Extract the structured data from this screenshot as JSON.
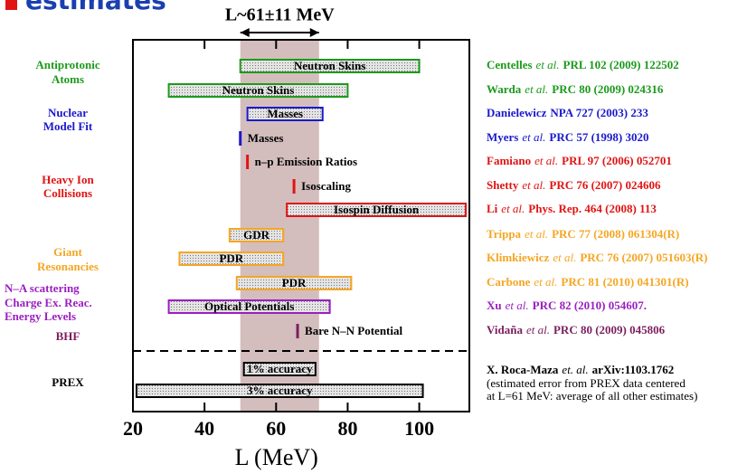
{
  "header": {
    "title": "estimates"
  },
  "chart_data": {
    "type": "range",
    "annotation": "L~61±11 MeV",
    "x_label": "L (MeV)",
    "xlim": [
      20,
      114
    ],
    "xticks": [
      20,
      40,
      60,
      80,
      100
    ],
    "band": [
      50,
      72
    ],
    "band_color": "#c9acac",
    "groups": [
      {
        "lines": [
          "Antiprotonic",
          "Atoms"
        ],
        "color": "#1c9a1c"
      },
      {
        "lines": [
          "Nuclear",
          "Model Fit"
        ],
        "color": "#1a1acc"
      },
      {
        "lines": [
          "Heavy Ion",
          "Collisions"
        ],
        "color": "#e01414"
      },
      {
        "lines": [
          "Giant",
          "Resonancies"
        ],
        "color": "#f5a623"
      },
      {
        "lines": [
          "N–A scattering",
          "Charge Ex. Reac.",
          "Energy Levels"
        ],
        "color": "#9b1fc0"
      },
      {
        "lines": [
          "BHF"
        ],
        "color": "#7a1f5e"
      },
      {
        "lines": [
          "PREX"
        ],
        "color": "#000000"
      }
    ],
    "items": [
      {
        "label": "Neutron Skins",
        "range": [
          50,
          100
        ],
        "color": "#1c9a1c",
        "reference": {
          "author": "Centelles",
          "etal": "et al.",
          "cite": "PRL 102 (2009) 122502"
        }
      },
      {
        "label": "Neutron Skins",
        "range": [
          30,
          80
        ],
        "color": "#1c9a1c",
        "reference": {
          "author": "Warda",
          "etal": "et al.",
          "cite": "PRC 80 (2009) 024316"
        }
      },
      {
        "label": "Masses",
        "range": [
          52,
          73
        ],
        "color": "#1a1acc",
        "reference": {
          "author": "Danielewicz",
          "cite": "NPA 727 (2003) 233"
        }
      },
      {
        "label": "Masses",
        "value": 50,
        "color": "#1a1acc",
        "reference": {
          "author": "Myers",
          "etal": "et al.",
          "cite": "PRC 57 (1998) 3020"
        }
      },
      {
        "label": "n–p Emission Ratios",
        "value": 52,
        "color": "#e01414",
        "reference": {
          "author": "Famiano",
          "etal": "et al.",
          "cite": "PRL 97 (2006) 052701"
        }
      },
      {
        "label": "Isoscaling",
        "value": 65,
        "color": "#e01414",
        "reference": {
          "author": "Shetty",
          "etal": "et al.",
          "cite": "PRC 76 (2007) 024606"
        }
      },
      {
        "label": "Isospin Diffusion",
        "range": [
          63,
          113
        ],
        "color": "#e01414",
        "reference": {
          "author": "Li",
          "etal": "et al.",
          "cite": "Phys. Rep. 464 (2008) 113"
        }
      },
      {
        "label": "GDR",
        "range": [
          47,
          62
        ],
        "color": "#f5a623",
        "reference": {
          "author": "Trippa",
          "etal": "et al.",
          "cite": "PRC 77 (2008) 061304(R)"
        }
      },
      {
        "label": "PDR",
        "range": [
          33,
          62
        ],
        "color": "#f5a623",
        "reference": {
          "author": "Klimkiewicz",
          "etal": "et al.",
          "cite": "PRC 76 (2007) 051603(R)"
        }
      },
      {
        "label": "PDR",
        "range": [
          49,
          81
        ],
        "color": "#f5a623",
        "reference": {
          "author": "Carbone",
          "etal": "et al.",
          "cite": "PRC 81 (2010) 041301(R)"
        }
      },
      {
        "label": "Optical Potentials",
        "range": [
          30,
          75
        ],
        "color": "#9b1fc0",
        "reference": {
          "author": "Xu",
          "etal": "et al.",
          "cite": "PRC 82 (2010) 054607."
        }
      },
      {
        "label": "Bare N–N Potential",
        "value": 66,
        "color": "#7a1f5e",
        "reference": {
          "author": "Vidaña",
          "etal": "et al.",
          "cite": "PRC 80 (2009) 045806"
        }
      },
      {
        "label": "1% accuracy",
        "range": [
          51,
          71
        ],
        "color": "#000000"
      },
      {
        "label": "3% accuracy",
        "range": [
          21,
          101
        ],
        "color": "#000000"
      }
    ],
    "note": {
      "author": "X. Roca-Maza",
      "etal": "et. al.",
      "cite": "arXiv:1103.1762",
      "lines": [
        "(estimated error from PREX data centered",
        "at L=61 MeV: average of all other estimates)"
      ]
    }
  }
}
